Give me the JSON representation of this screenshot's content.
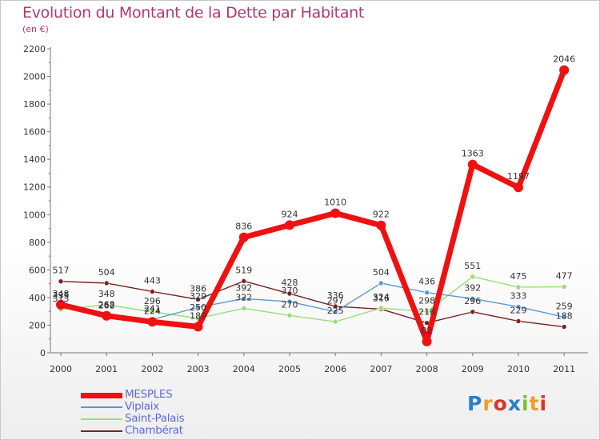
{
  "title": "Evolution du Montant de la Dette par Habitant",
  "subtitle": "(en €)",
  "logo": {
    "text": "Proxiti",
    "letter_colors": [
      "#2a7fc9",
      "#e9a028",
      "#d9352a",
      "#2a7fc9",
      "#7bbf3a",
      "#e9a028",
      "#d9352a"
    ]
  },
  "colors": {
    "title": "#b03a6f",
    "axis_text": "#333333",
    "legend_text": "#5b6bd6"
  },
  "chart_data": {
    "type": "line",
    "x": [
      "2000",
      "2001",
      "2002",
      "2003",
      "2004",
      "2005",
      "2006",
      "2007",
      "2008",
      "2009",
      "2010",
      "2011"
    ],
    "ylim": [
      0,
      2200
    ],
    "yticks": [
      0,
      200,
      400,
      600,
      800,
      1000,
      1200,
      1400,
      1600,
      1800,
      2000,
      2200
    ],
    "grid": false,
    "legend_position": "bottom-left",
    "series": [
      {
        "name": "MESPLES",
        "color": "#ee1111",
        "values": [
          348,
          268,
          224,
          189,
          836,
          924,
          1010,
          922,
          82,
          1363,
          1197,
          2046
        ],
        "labels": [
          "348",
          "268",
          "224",
          "189",
          "836",
          "924",
          "1010",
          "922",
          "82",
          "1363",
          "1197",
          "2046"
        ]
      },
      {
        "name": "Viplaix",
        "color": "#5b9bd5",
        "values": [
          335,
          262,
          241,
          329,
          392,
          370,
          297,
          504,
          436,
          392,
          333,
          259
        ],
        "labels": [
          "335",
          "262",
          "241",
          "329",
          "392",
          "370",
          "297",
          "504",
          "436",
          "392",
          "333",
          "259"
        ]
      },
      {
        "name": "Saint-Palais",
        "color": "#99dd77",
        "values": [
          313,
          348,
          296,
          250,
          322,
          270,
          225,
          324,
          298,
          551,
          475,
          477
        ],
        "labels": [
          "313",
          "348",
          "296",
          "250",
          "322",
          "270",
          "225",
          "324",
          "298",
          "551",
          "475",
          "477"
        ]
      },
      {
        "name": "Chambérat",
        "color": "#772222",
        "values": [
          517,
          504,
          443,
          386,
          519,
          428,
          336,
          316,
          216,
          296,
          229,
          188
        ],
        "labels": [
          "517",
          "504",
          "443",
          "386",
          "519",
          "428",
          "336",
          "316",
          "216",
          "296",
          "229",
          "188"
        ]
      }
    ]
  }
}
